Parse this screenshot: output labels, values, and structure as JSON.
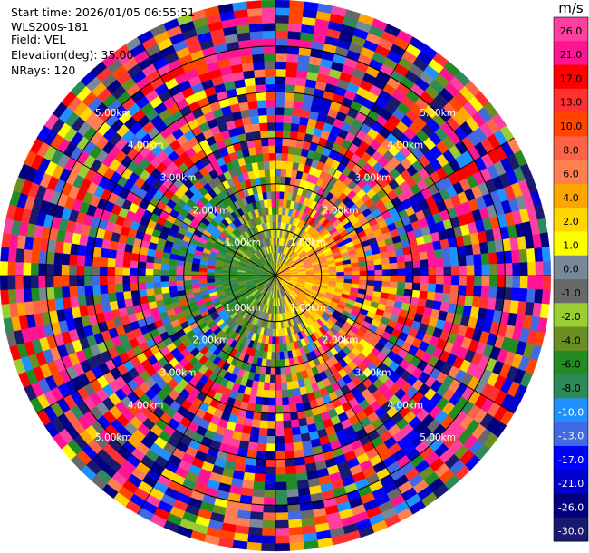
{
  "header": {
    "start_time": "Start time: 2026/01/05 06:55:51",
    "instrument": "WLS200s-181",
    "field": "Field: VEL",
    "elevation": "Elevation(deg): 35.00",
    "nrays": "NRays: 120"
  },
  "chart_data": {
    "type": "heatmap",
    "projection": "polar-ppi",
    "field": "VEL",
    "units": "m/s",
    "nrays": 120,
    "elevation_deg": 35.0,
    "max_range_km": 6.0,
    "range_rings_km": [
      1.0,
      2.0,
      3.0,
      4.0,
      5.0
    ],
    "range_ring_labels": [
      "1.00km",
      "2.00km",
      "3.00km",
      "4.00km",
      "5.00km"
    ],
    "colorbar": {
      "unit_label": "m/s",
      "ticks": [
        "26.0",
        "21.0",
        "17.0",
        "13.0",
        "10.0",
        "8.0",
        "6.0",
        "4.0",
        "2.0",
        "1.0",
        "0.0",
        "-1.0",
        "-2.0",
        "-4.0",
        "-6.0",
        "-8.0",
        "-10.0",
        "-13.0",
        "-17.0",
        "-21.0",
        "-26.0",
        "-30.0"
      ],
      "bins": [
        {
          "lo": 26,
          "hi": 30,
          "color": "#ff3fa0"
        },
        {
          "lo": 21,
          "hi": 26,
          "color": "#ff1493"
        },
        {
          "lo": 17,
          "hi": 21,
          "color": "#ff0000"
        },
        {
          "lo": 13,
          "hi": 17,
          "color": "#ff3030"
        },
        {
          "lo": 10,
          "hi": 13,
          "color": "#ff4500"
        },
        {
          "lo": 8,
          "hi": 10,
          "color": "#ff6347"
        },
        {
          "lo": 6,
          "hi": 8,
          "color": "#ff7f50"
        },
        {
          "lo": 4,
          "hi": 6,
          "color": "#ffa500"
        },
        {
          "lo": 2,
          "hi": 4,
          "color": "#ffd700"
        },
        {
          "lo": 1,
          "hi": 2,
          "color": "#ffff00"
        },
        {
          "lo": 0,
          "hi": 1,
          "color": "#778899"
        },
        {
          "lo": -1,
          "hi": 0,
          "color": "#696969"
        },
        {
          "lo": -2,
          "hi": -1,
          "color": "#9acd32"
        },
        {
          "lo": -4,
          "hi": -2,
          "color": "#6b8e23"
        },
        {
          "lo": -6,
          "hi": -4,
          "color": "#228b22"
        },
        {
          "lo": -8,
          "hi": -6,
          "color": "#2e8b57"
        },
        {
          "lo": -10,
          "hi": -8,
          "color": "#1e90ff"
        },
        {
          "lo": -13,
          "hi": -10,
          "color": "#4169e1"
        },
        {
          "lo": -17,
          "hi": -13,
          "color": "#0000ff"
        },
        {
          "lo": -21,
          "hi": -17,
          "color": "#0000cd"
        },
        {
          "lo": -26,
          "hi": -21,
          "color": "#000080"
        },
        {
          "lo": -30,
          "hi": -26,
          "color": "#191970"
        }
      ]
    }
  }
}
